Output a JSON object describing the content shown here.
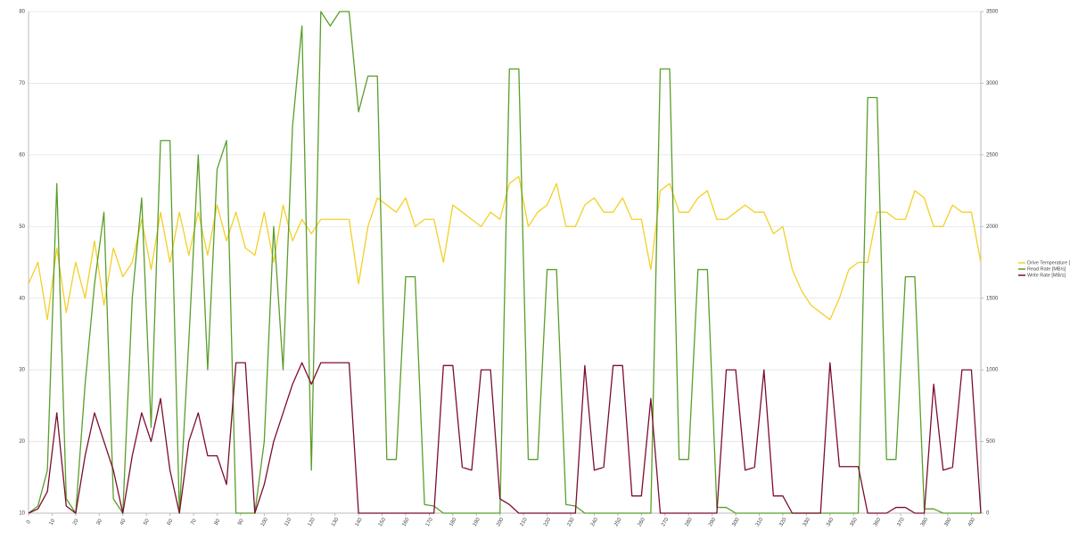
{
  "chart_data": {
    "type": "line",
    "x": [
      0,
      4,
      8,
      12,
      16,
      20,
      24,
      28,
      32,
      36,
      40,
      44,
      48,
      52,
      56,
      60,
      64,
      68,
      72,
      76,
      80,
      84,
      88,
      92,
      96,
      100,
      104,
      108,
      112,
      116,
      120,
      124,
      128,
      132,
      136,
      140,
      144,
      148,
      152,
      156,
      160,
      164,
      168,
      172,
      176,
      180,
      184,
      188,
      192,
      196,
      200,
      204,
      208,
      212,
      216,
      220,
      224,
      228,
      232,
      236,
      240,
      244,
      248,
      252,
      256,
      260,
      264,
      268,
      272,
      276,
      280,
      284,
      288,
      292,
      296,
      300,
      304,
      308,
      312,
      316,
      320,
      324,
      328,
      332,
      336,
      340,
      344,
      348,
      352,
      356,
      360,
      364,
      368,
      372,
      376,
      380,
      384,
      388,
      392,
      396,
      400,
      404
    ],
    "xlim": [
      0,
      404
    ],
    "xticks": [
      0,
      10,
      20,
      30,
      40,
      50,
      60,
      70,
      80,
      90,
      100,
      110,
      120,
      130,
      140,
      150,
      160,
      170,
      180,
      190,
      200,
      210,
      220,
      230,
      240,
      250,
      260,
      270,
      280,
      290,
      300,
      310,
      320,
      330,
      340,
      350,
      360,
      370,
      380,
      390,
      400
    ],
    "ylim": [
      10,
      80
    ],
    "yticks": [
      10,
      20,
      30,
      40,
      50,
      60,
      70,
      80
    ],
    "y2lim": [
      0,
      3500
    ],
    "y2ticks": [
      0,
      500,
      1000,
      1500,
      2000,
      2500,
      3000,
      3500
    ],
    "grid": true,
    "legend": "right",
    "series": [
      {
        "name": "Drive Temperature [°C]",
        "color": "#f2d027",
        "axis": "y",
        "values": [
          42,
          45,
          37,
          47,
          38,
          45,
          40,
          48,
          39,
          47,
          43,
          45,
          51,
          44,
          52,
          45,
          52,
          46,
          52,
          46,
          53,
          48,
          52,
          47,
          46,
          52,
          45,
          53,
          48,
          51,
          49,
          51,
          51,
          51,
          51,
          42,
          50,
          54,
          53,
          52,
          54,
          50,
          51,
          51,
          45,
          53,
          52,
          51,
          50,
          52,
          51,
          56,
          57,
          50,
          52,
          53,
          56,
          50,
          50,
          53,
          54,
          52,
          52,
          54,
          51,
          51,
          44,
          55,
          56,
          52,
          52,
          54,
          55,
          51,
          51,
          52,
          53,
          52,
          52,
          49,
          50,
          44,
          41,
          39,
          38,
          37,
          40,
          44,
          45,
          45,
          52,
          52,
          51,
          51,
          55,
          54,
          50,
          50,
          53,
          52,
          52,
          45
        ]
      },
      {
        "name": "Read Rate [MB/s]",
        "color": "#5a9e2a",
        "axis": "y2",
        "values": [
          0,
          50,
          300,
          2300,
          100,
          0,
          900,
          1600,
          2100,
          100,
          0,
          1500,
          2200,
          600,
          2600,
          2600,
          0,
          1200,
          2500,
          1000,
          2400,
          2600,
          0,
          0,
          0,
          500,
          2000,
          1000,
          2700,
          3400,
          300,
          3500,
          3400,
          3500,
          3500,
          2800,
          3050,
          3050,
          375,
          375,
          1650,
          1650,
          60,
          50,
          0,
          0,
          0,
          0,
          0,
          0,
          0,
          3100,
          3100,
          375,
          375,
          1700,
          1700,
          60,
          50,
          0,
          0,
          0,
          0,
          0,
          0,
          0,
          0,
          3100,
          3100,
          375,
          375,
          1700,
          1700,
          40,
          40,
          0,
          0,
          0,
          0,
          0,
          0,
          0,
          0,
          0,
          0,
          0,
          0,
          0,
          0,
          2900,
          2900,
          375,
          375,
          1650,
          1650,
          30,
          30,
          0,
          0,
          0,
          0,
          0
        ]
      },
      {
        "name": "Write Rate [MB/s]",
        "color": "#7b0d2e",
        "axis": "y2",
        "values": [
          0,
          30,
          150,
          700,
          50,
          0,
          400,
          700,
          500,
          300,
          0,
          400,
          700,
          500,
          800,
          300,
          0,
          500,
          700,
          400,
          400,
          200,
          1050,
          1050,
          0,
          200,
          500,
          700,
          900,
          1050,
          900,
          1050,
          1050,
          1050,
          1050,
          0,
          0,
          0,
          0,
          0,
          0,
          0,
          0,
          0,
          1030,
          1030,
          320,
          300,
          1000,
          1000,
          100,
          60,
          0,
          0,
          0,
          0,
          0,
          0,
          0,
          1030,
          300,
          320,
          1030,
          1030,
          120,
          120,
          800,
          0,
          0,
          0,
          0,
          0,
          0,
          0,
          1000,
          1000,
          300,
          320,
          1000,
          120,
          120,
          0,
          0,
          0,
          0,
          1050,
          325,
          325,
          325,
          0,
          0,
          0,
          40,
          40,
          0,
          0,
          900,
          300,
          320,
          1000,
          1000,
          0
        ]
      }
    ]
  }
}
